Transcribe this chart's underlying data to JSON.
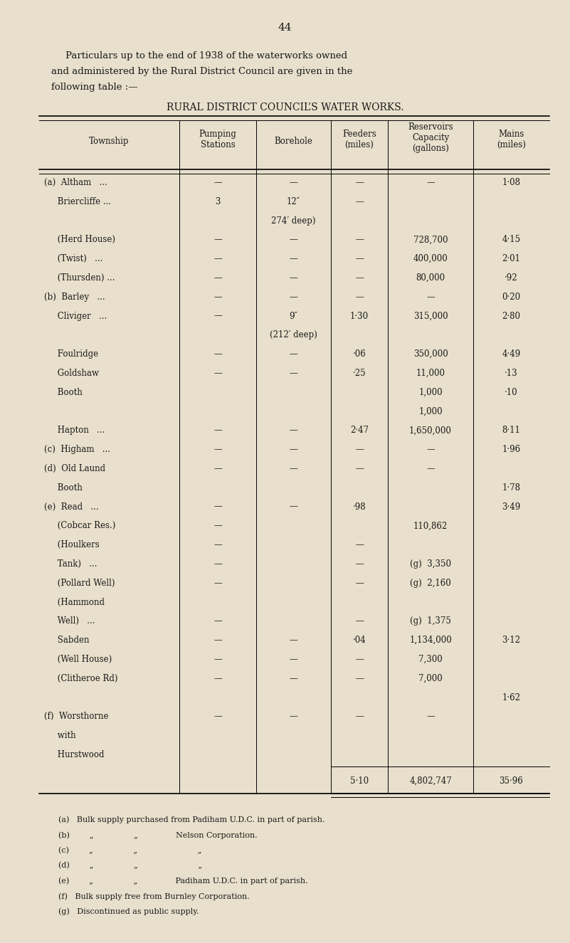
{
  "bg_color": "#e8e0cc",
  "page_number": "44",
  "intro_line1": "Particulars up to the end of 1938 of the waterworks owned",
  "intro_line2": "and administered by the Rural District Council are given in the",
  "intro_line3": "following table :—",
  "table_title": "RURAL DISTRICT COUNCIL’S WATER WORKS.",
  "totals": {
    "feeders": "5·10",
    "reservoirs": "4,802,747",
    "mains": "35·96"
  },
  "footnotes": [
    "(a)   Bulk supply purchased from Padiham U.D.C. in part of parish.",
    "(b)        „              „             Nelson Corporation.",
    "(c)        „              „                      „",
    "(d)        „              „                      „",
    "(e)        „              „             Padiham U.D.C. in part of parish.",
    "(f)   Bulk supply free from Burnley Corporation.",
    "(g)   Discontinued as public supply."
  ]
}
